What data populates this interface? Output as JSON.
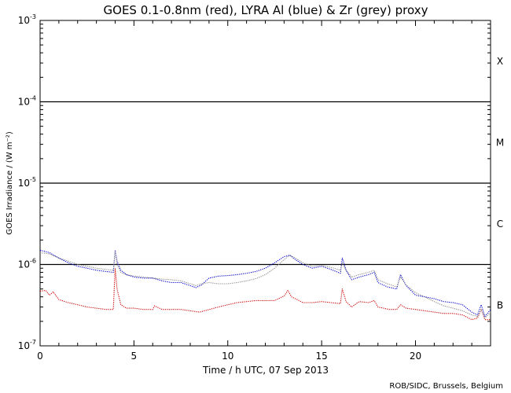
{
  "chart_data": {
    "type": "line",
    "title": "GOES 0.1-0.8nm (red), LYRA Al (blue) & Zr (grey) proxy",
    "xlabel": "Time / h UTC, 07 Sep 2013",
    "ylabel": "GOES Irradiance / (W m⁻²)",
    "y_scale": "log",
    "xlim": [
      0,
      24
    ],
    "ylim": [
      1e-07,
      0.001
    ],
    "x_ticks": [
      0,
      5,
      10,
      15,
      20
    ],
    "x_tick_labels": [
      "0",
      "5",
      "10",
      "15",
      "20"
    ],
    "y_ticks": [
      1e-07,
      1e-06,
      1e-05,
      0.0001,
      0.001
    ],
    "y_tick_labels": [
      {
        "base": "10",
        "exp": "-7"
      },
      {
        "base": "10",
        "exp": "-6"
      },
      {
        "base": "10",
        "exp": "-5"
      },
      {
        "base": "10",
        "exp": "-4"
      },
      {
        "base": "10",
        "exp": "-3"
      }
    ],
    "flare_class_lines": [
      1e-06,
      1e-05,
      0.0001
    ],
    "flare_classes": [
      {
        "label": "X",
        "y": 0.000316
      },
      {
        "label": "M",
        "y": 3.16e-05
      },
      {
        "label": "C",
        "y": 3.16e-06
      },
      {
        "label": "B",
        "y": 3.16e-07
      }
    ],
    "series": [
      {
        "color": "#cc0000",
        "x": [
          0,
          0.3,
          0.5,
          0.7,
          1.0,
          1.5,
          2.0,
          2.5,
          3.0,
          3.5,
          3.9,
          4.0,
          4.1,
          4.3,
          4.6,
          5.0,
          5.5,
          6.0,
          6.1,
          6.5,
          7.0,
          7.5,
          8.0,
          8.5,
          9.5,
          10.0,
          10.5,
          11.0,
          11.5,
          12.0,
          12.5,
          13.0,
          13.2,
          13.4,
          13.7,
          14.0,
          14.5,
          15.0,
          15.5,
          16.0,
          16.1,
          16.3,
          16.6,
          17.0,
          17.5,
          17.8,
          18.0,
          18.3,
          18.6,
          19.0,
          19.2,
          19.5,
          20.0,
          20.5,
          21.0,
          21.5,
          22.0,
          22.5,
          23.0,
          23.3,
          23.5,
          23.7,
          24.0
        ],
        "values": [
          4.7e-07,
          4.8e-07,
          4.2e-07,
          4.6e-07,
          3.7e-07,
          3.4e-07,
          3.2e-07,
          3e-07,
          2.9e-07,
          2.8e-07,
          2.8e-07,
          9e-07,
          5e-07,
          3.2e-07,
          2.9e-07,
          2.9e-07,
          2.8e-07,
          2.8e-07,
          3.1e-07,
          2.8e-07,
          2.8e-07,
          2.8e-07,
          2.7e-07,
          2.6e-07,
          3e-07,
          3.2e-07,
          3.4e-07,
          3.5e-07,
          3.6e-07,
          3.6e-07,
          3.6e-07,
          4.1e-07,
          4.8e-07,
          4e-07,
          3.7e-07,
          3.4e-07,
          3.4e-07,
          3.5e-07,
          3.4e-07,
          3.3e-07,
          5e-07,
          3.5e-07,
          3e-07,
          3.5e-07,
          3.4e-07,
          3.6e-07,
          3e-07,
          2.9e-07,
          2.8e-07,
          2.8e-07,
          3.2e-07,
          2.9e-07,
          2.8e-07,
          2.7e-07,
          2.6e-07,
          2.5e-07,
          2.5e-07,
          2.4e-07,
          2.1e-07,
          2.2e-07,
          2.8e-07,
          2.1e-07,
          2.1e-07
        ]
      },
      {
        "color": "#0000cc",
        "x": [
          0,
          0.5,
          1.0,
          1.5,
          2.0,
          2.5,
          3.0,
          3.5,
          3.9,
          4.0,
          4.1,
          4.3,
          4.6,
          5.0,
          5.5,
          6.0,
          6.5,
          7.0,
          7.5,
          8.0,
          8.3,
          8.6,
          9.0,
          9.5,
          10.0,
          10.5,
          11.0,
          11.5,
          12.0,
          12.5,
          13.0,
          13.3,
          13.6,
          14.0,
          14.5,
          15.0,
          15.5,
          16.0,
          16.1,
          16.3,
          16.6,
          17.0,
          17.5,
          17.8,
          18.0,
          18.5,
          19.0,
          19.2,
          19.5,
          20.0,
          20.5,
          21.0,
          21.5,
          22.0,
          22.5,
          23.0,
          23.3,
          23.5,
          23.7,
          24.0
        ],
        "values": [
          1.5e-06,
          1.4e-06,
          1.2e-06,
          1.05e-06,
          9.5e-07,
          9e-07,
          8.5e-07,
          8.2e-07,
          8e-07,
          1.5e-06,
          1.1e-06,
          8.5e-07,
          7.5e-07,
          7e-07,
          6.8e-07,
          6.8e-07,
          6.3e-07,
          6e-07,
          6e-07,
          5.5e-07,
          5.2e-07,
          5.6e-07,
          6.8e-07,
          7.2e-07,
          7.3e-07,
          7.5e-07,
          7.8e-07,
          8.2e-07,
          9e-07,
          1.05e-06,
          1.25e-06,
          1.3e-06,
          1.15e-06,
          1e-06,
          9e-07,
          9.5e-07,
          8.7e-07,
          7.8e-07,
          1.2e-06,
          8.5e-07,
          6.5e-07,
          7e-07,
          7.5e-07,
          8e-07,
          6e-07,
          5.3e-07,
          5e-07,
          7.5e-07,
          5.5e-07,
          4.2e-07,
          4e-07,
          3.8e-07,
          3.5e-07,
          3.4e-07,
          3.2e-07,
          2.6e-07,
          2.4e-07,
          3.2e-07,
          2.3e-07,
          2.8e-07
        ]
      },
      {
        "color": "#888888",
        "x": [
          0,
          0.5,
          1.0,
          1.5,
          2.0,
          2.5,
          3.0,
          3.5,
          3.9,
          4.0,
          4.1,
          4.3,
          4.6,
          5.0,
          5.5,
          6.0,
          6.5,
          7.0,
          7.5,
          8.0,
          8.3,
          8.6,
          9.0,
          9.5,
          10.0,
          10.5,
          11.0,
          11.5,
          12.0,
          12.5,
          13.0,
          13.3,
          13.6,
          14.0,
          14.5,
          15.0,
          15.5,
          16.0,
          16.1,
          16.3,
          16.6,
          17.0,
          17.5,
          17.8,
          18.0,
          18.5,
          19.0,
          19.2,
          19.5,
          20.0,
          20.5,
          21.0,
          21.5,
          22.0,
          22.5,
          23.0,
          23.3,
          23.5,
          23.7,
          24.0
        ],
        "values": [
          1.4e-06,
          1.35e-06,
          1.2e-06,
          1.1e-06,
          1e-06,
          9.5e-07,
          9e-07,
          8.7e-07,
          8.5e-07,
          1.45e-06,
          1e-06,
          8e-07,
          7.5e-07,
          7.2e-07,
          7e-07,
          6.8e-07,
          6.6e-07,
          6.5e-07,
          6.3e-07,
          5.8e-07,
          5.5e-07,
          5.8e-07,
          6e-07,
          5.8e-07,
          5.8e-07,
          6e-07,
          6.3e-07,
          6.7e-07,
          7.5e-07,
          9e-07,
          1.15e-06,
          1.3e-06,
          1.2e-06,
          1.05e-06,
          9.5e-07,
          9.8e-07,
          9.2e-07,
          8.5e-07,
          1.05e-06,
          8.5e-07,
          7e-07,
          7.5e-07,
          8e-07,
          8.5e-07,
          6.5e-07,
          5.8e-07,
          5.3e-07,
          7e-07,
          5.6e-07,
          4.5e-07,
          4e-07,
          3.5e-07,
          3.1e-07,
          2.9e-07,
          2.7e-07,
          2.4e-07,
          2.3e-07,
          2.8e-07,
          2.2e-07,
          2.6e-07
        ]
      }
    ],
    "grid": false,
    "credit": "ROB/SIDC, Brussels, Belgium"
  }
}
